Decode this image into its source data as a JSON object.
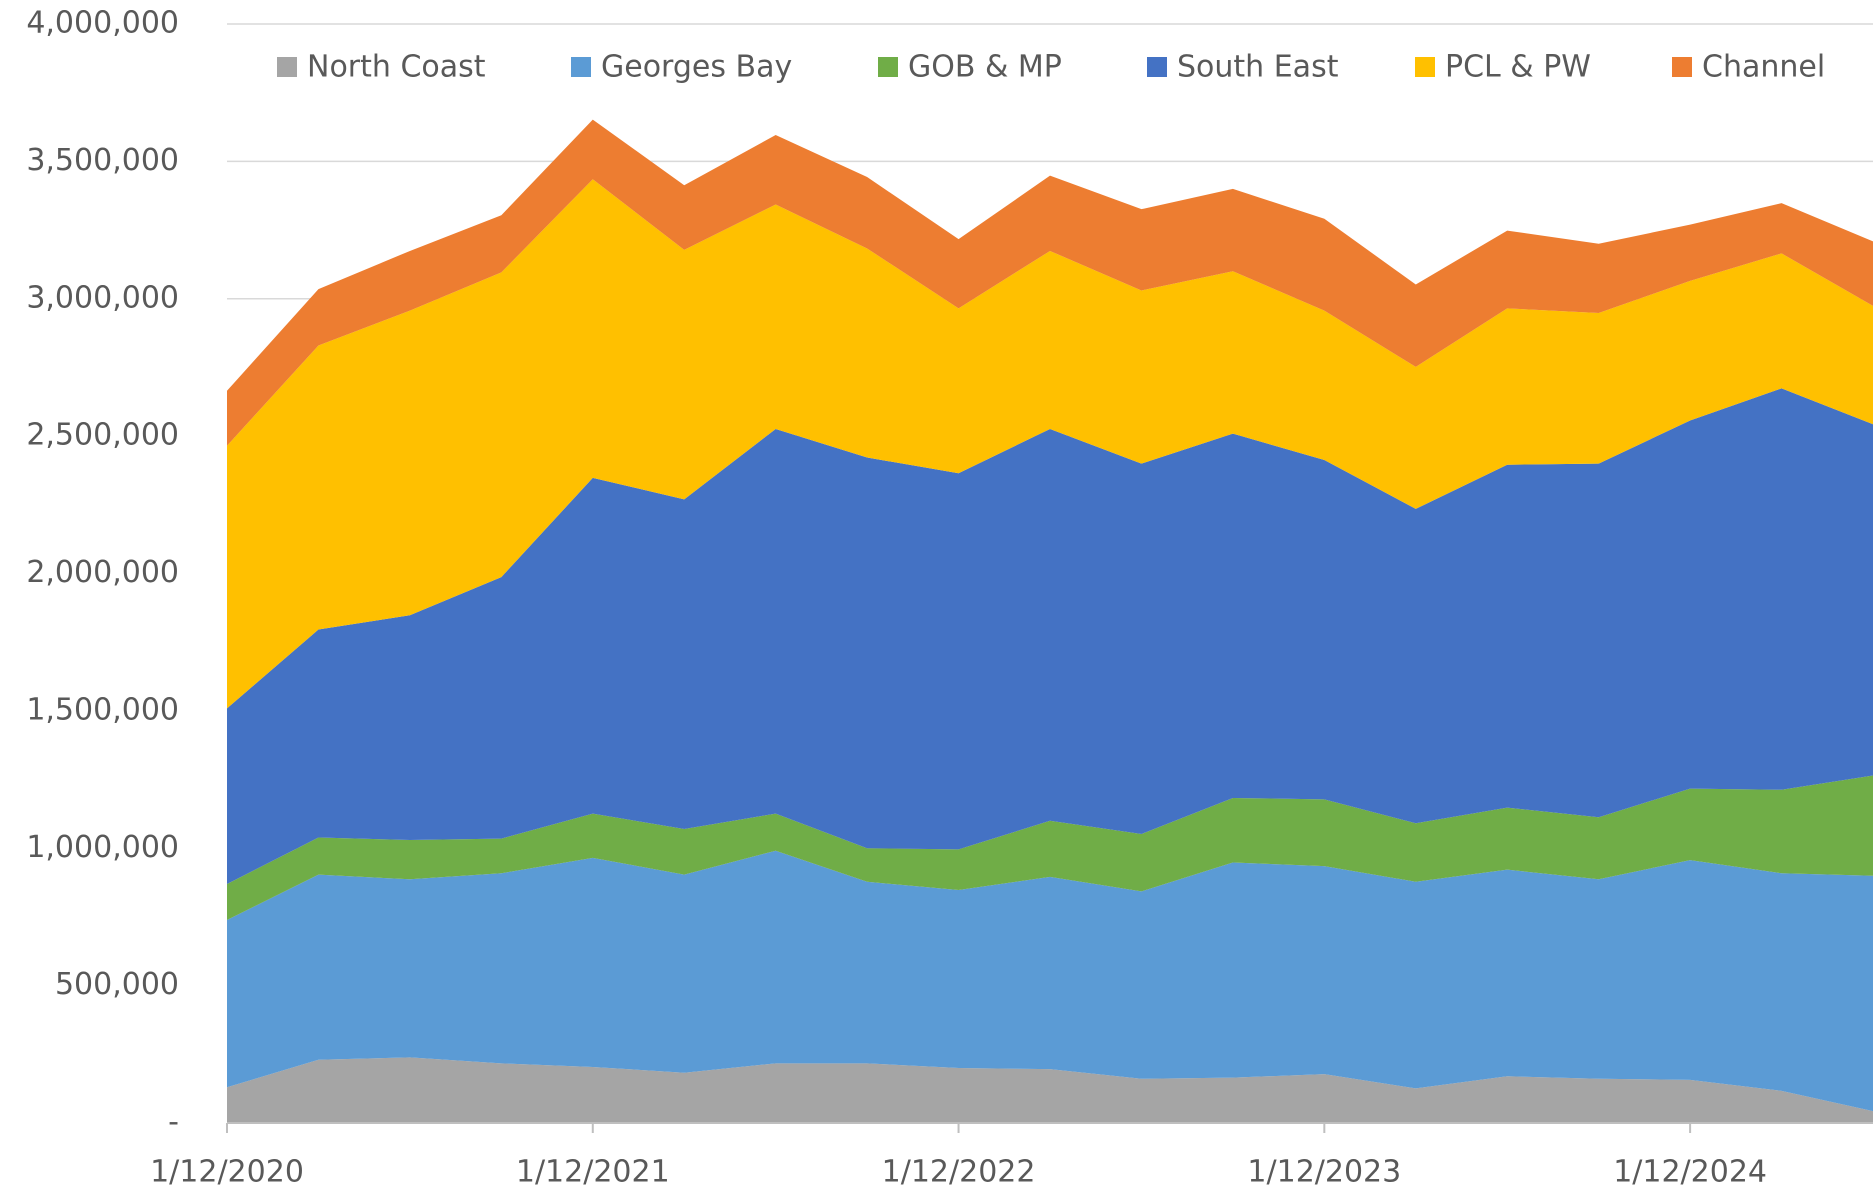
{
  "chart_data": {
    "type": "stacked_area",
    "categories": [
      "1/12/2020",
      null,
      null,
      null,
      "1/12/2021",
      null,
      null,
      null,
      "1/12/2022",
      null,
      null,
      null,
      "1/12/2023",
      null,
      null,
      null,
      "1/12/2024",
      null,
      null
    ],
    "series": [
      {
        "name": "North Coast",
        "color": "#a5a5a5",
        "values": [
          130000,
          230000,
          239000,
          217000,
          204000,
          183000,
          217000,
          217000,
          200000,
          196000,
          161000,
          165000,
          178000,
          126000,
          170000,
          161000,
          157000,
          117000,
          43000
        ]
      },
      {
        "name": "Georges Bay",
        "color": "#5b9bd5",
        "values": [
          609000,
          674000,
          648000,
          692000,
          761000,
          721000,
          774000,
          661000,
          648000,
          700000,
          682000,
          783000,
          757000,
          752000,
          752000,
          726000,
          800000,
          792000,
          857000
        ]
      },
      {
        "name": "GOB & MP",
        "color": "#70ad47",
        "values": [
          131000,
          135000,
          143000,
          126000,
          161000,
          166000,
          135000,
          122000,
          148000,
          204000,
          209000,
          235000,
          243000,
          213000,
          226000,
          226000,
          260000,
          304000,
          365000
        ]
      },
      {
        "name": "South East",
        "color": "#4472c4",
        "values": [
          639000,
          757000,
          818000,
          952000,
          1222000,
          1200000,
          1400000,
          1422000,
          1369000,
          1426000,
          1348000,
          1326000,
          1235000,
          1144000,
          1248000,
          1287000,
          1340000,
          1461000,
          1278000
        ]
      },
      {
        "name": "PCL & PW",
        "color": "#ffc000",
        "values": [
          956000,
          1034000,
          1109000,
          1109000,
          1087000,
          908000,
          817000,
          761000,
          600000,
          648000,
          630000,
          591000,
          544000,
          517000,
          569000,
          548000,
          508000,
          491000,
          431000
        ]
      },
      {
        "name": "Channel",
        "color": "#ed7d31",
        "values": [
          200000,
          205000,
          217000,
          208000,
          217000,
          235000,
          253000,
          260000,
          252000,
          274000,
          296000,
          300000,
          334000,
          300000,
          283000,
          252000,
          205000,
          183000,
          235000
        ]
      }
    ],
    "ylim": [
      0,
      4000000
    ],
    "yticks": [
      {
        "value": 0,
        "label": "-"
      },
      {
        "value": 500000,
        "label": "500,000"
      },
      {
        "value": 1000000,
        "label": "1,000,000"
      },
      {
        "value": 1500000,
        "label": "1,500,000"
      },
      {
        "value": 2000000,
        "label": "2,000,000"
      },
      {
        "value": 2500000,
        "label": "2,500,000"
      },
      {
        "value": 3000000,
        "label": "3,000,000"
      },
      {
        "value": 3500000,
        "label": "3,500,000"
      },
      {
        "value": 4000000,
        "label": "4,000,000"
      }
    ],
    "grid": true,
    "legend": "top"
  }
}
